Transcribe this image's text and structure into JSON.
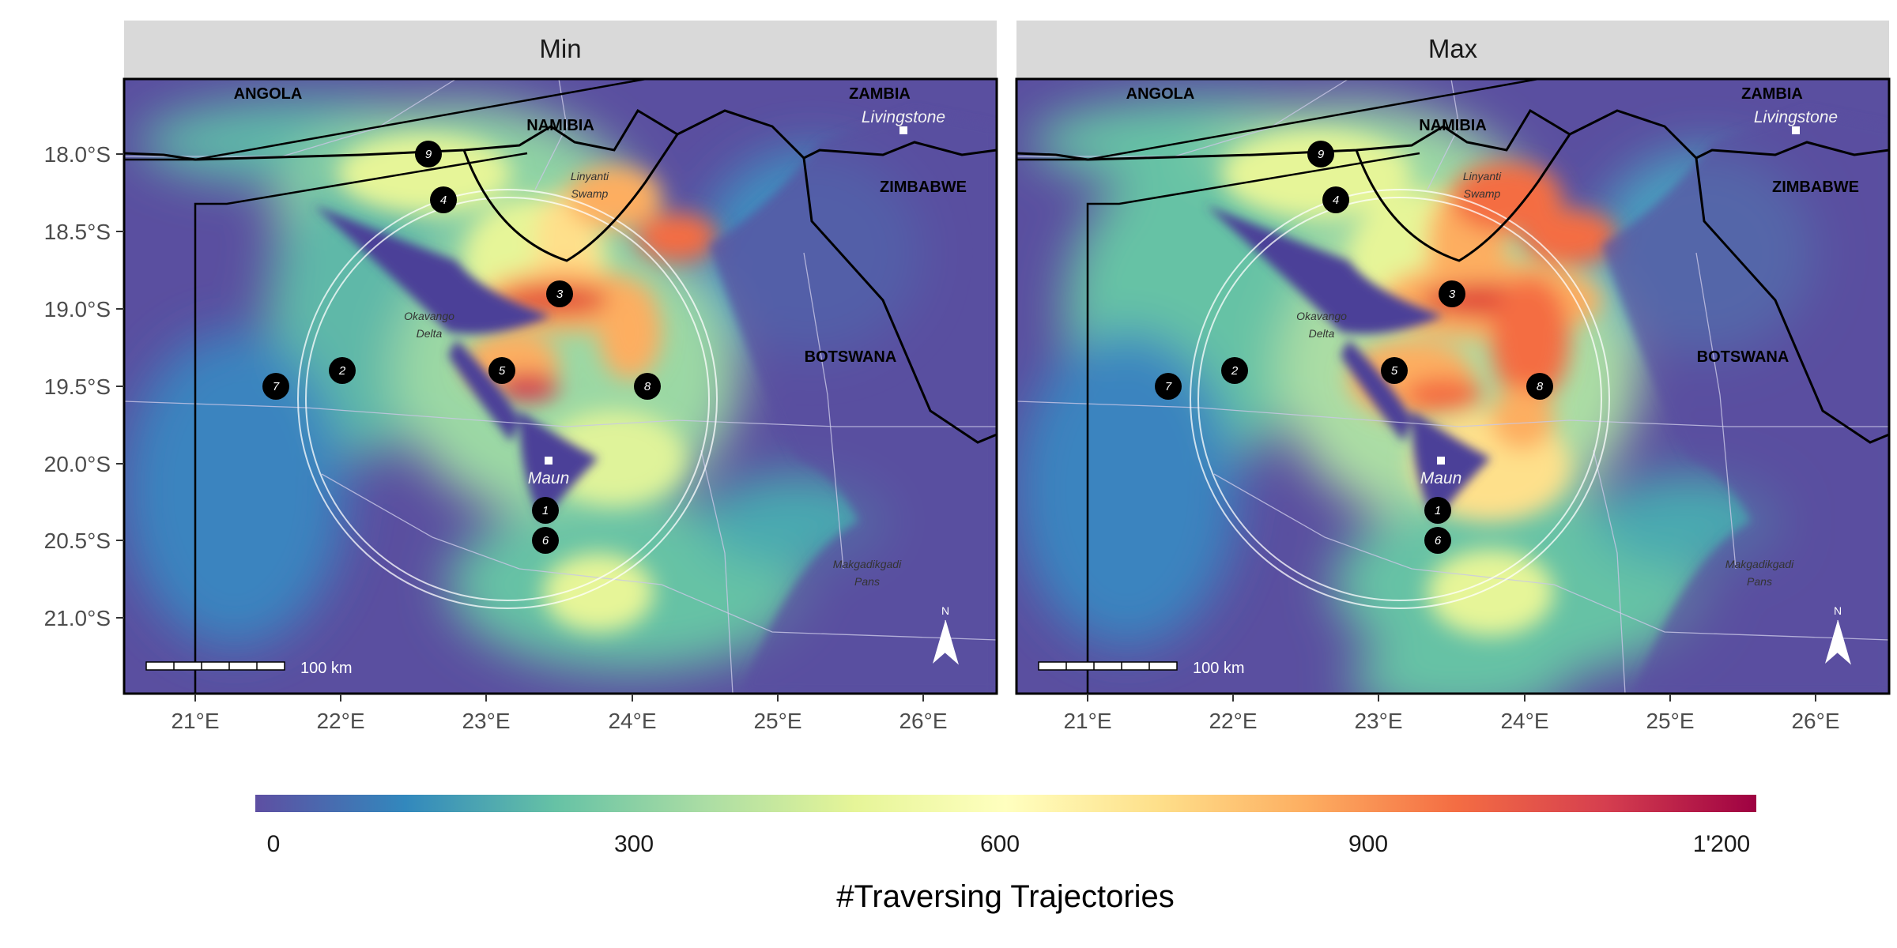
{
  "figure": {
    "panels": [
      {
        "strip_label": "Min",
        "variant": "min"
      },
      {
        "strip_label": "Max",
        "variant": "max"
      }
    ],
    "y_ticks": [
      "18.0°S",
      "18.5°S",
      "19.0°S",
      "19.5°S",
      "20.0°S",
      "20.5°S",
      "21.0°S"
    ],
    "x_ticks": [
      "21°E",
      "22°E",
      "23°E",
      "24°E",
      "25°E",
      "26°E"
    ],
    "country_labels": [
      "ANGOLA",
      "NAMIBIA",
      "ZAMBIA",
      "ZIMBABWE",
      "BOTSWANA"
    ],
    "place_labels": {
      "livingstone": "Livingstone",
      "maun": "Maun",
      "linyanti": [
        "Linyanti",
        "Swamp"
      ],
      "okavango": [
        "Okavango",
        "Delta"
      ],
      "makgadikgadi": [
        "Makgadikgadi",
        "Pans"
      ]
    },
    "markers": [
      "1",
      "2",
      "3",
      "4",
      "5",
      "6",
      "7",
      "8",
      "9"
    ],
    "scalebar_label": "100 km",
    "north_label": "N"
  },
  "colorbar": {
    "title": "#Traversing Trajectories",
    "ticks": [
      "0",
      "300",
      "600",
      "900",
      "1'200"
    ],
    "range": [
      0,
      1200
    ],
    "palette": [
      "#5e4fa2",
      "#3288bd",
      "#66c2a5",
      "#abdda4",
      "#e6f598",
      "#ffffbf",
      "#fee08b",
      "#fdae61",
      "#f46d43",
      "#d53e4f",
      "#9e0142"
    ]
  }
}
